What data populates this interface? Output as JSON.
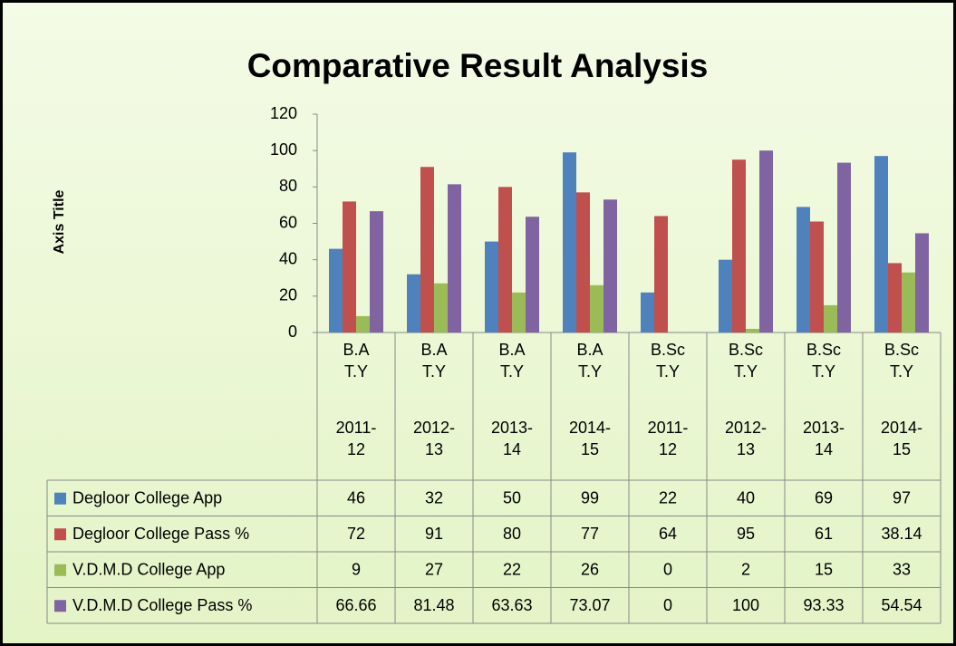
{
  "chart_data": {
    "type": "bar",
    "title": "Comparative Result Analysis",
    "y_axis_label": "Axis Title",
    "categories": [
      [
        "B.A T.Y",
        "2011-12"
      ],
      [
        "B.A T.Y",
        "2012-13"
      ],
      [
        "B.A T.Y",
        "2013-14"
      ],
      [
        "B.A T.Y",
        "2014-15"
      ],
      [
        "B.Sc T.Y",
        "2011-12"
      ],
      [
        "B.Sc T.Y",
        "2012-13"
      ],
      [
        "B.Sc T.Y",
        "2013-14"
      ],
      [
        "B.Sc T.Y",
        "2014-15"
      ]
    ],
    "series": [
      {
        "name": "Degloor College App",
        "color": "#4f81bd",
        "values": [
          46,
          32,
          50,
          99,
          22,
          40,
          69,
          97
        ]
      },
      {
        "name": "Degloor College Pass %",
        "color": "#c0504d",
        "values": [
          72,
          91,
          80,
          77,
          64,
          95,
          61,
          38.14
        ]
      },
      {
        "name": "V.D.M.D College App",
        "color": "#9bbb59",
        "values": [
          9,
          27,
          22,
          26,
          0,
          2,
          15,
          33
        ]
      },
      {
        "name": "V.D.M.D College Pass %",
        "color": "#8064a2",
        "values": [
          66.66,
          81.48,
          63.63,
          73.07,
          0,
          100,
          93.33,
          54.54
        ]
      }
    ],
    "ylim": [
      0,
      120
    ],
    "yticks": [
      0,
      20,
      40,
      60,
      80,
      100,
      120
    ],
    "grid": false
  }
}
